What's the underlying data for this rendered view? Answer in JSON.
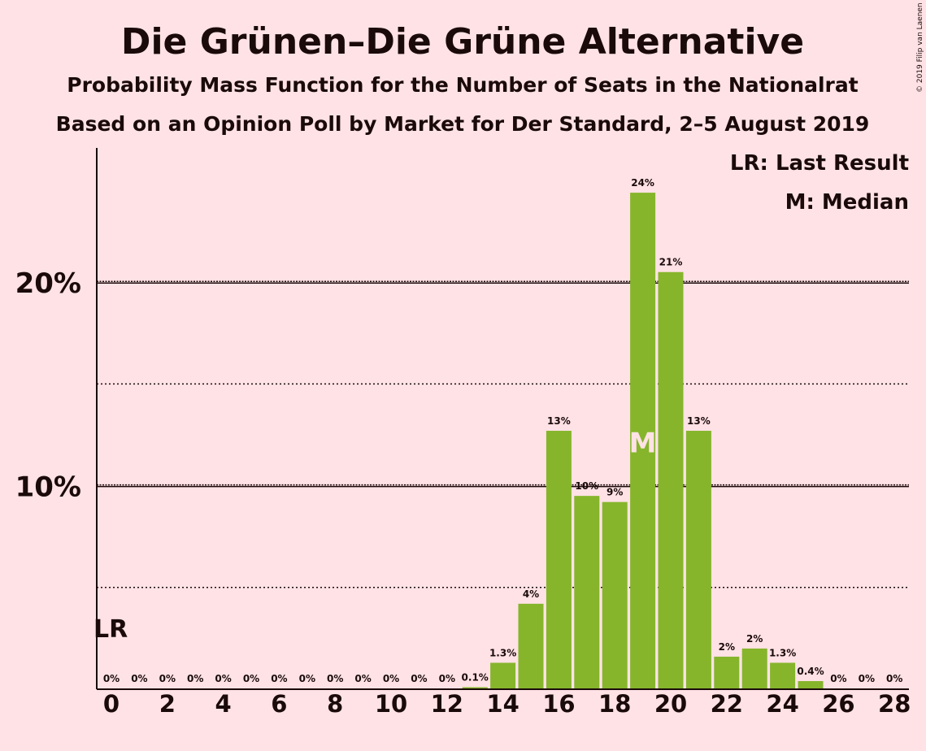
{
  "title": "Die Grünen–Die Grüne Alternative",
  "subtitle1": "Probability Mass Function for the Number of Seats in the Nationalrat",
  "subtitle2": "Based on an Opinion Poll by Market for Der Standard, 2–5 August 2019",
  "copyright": "© 2019 Filip van Laenen",
  "legend": {
    "lr": "LR: Last Result",
    "m": "M: Median"
  },
  "colors": {
    "background": "#FFE2E5",
    "bar": "#86B52C",
    "text": "#1a0a0a",
    "median_marker": "#FFE2E5"
  },
  "chart_data": {
    "type": "bar",
    "x": [
      0,
      1,
      2,
      3,
      4,
      5,
      6,
      7,
      8,
      9,
      10,
      11,
      12,
      13,
      14,
      15,
      16,
      17,
      18,
      19,
      20,
      21,
      22,
      23,
      24,
      25,
      26,
      27,
      28
    ],
    "values": [
      0,
      0,
      0,
      0,
      0,
      0,
      0,
      0,
      0,
      0,
      0,
      0,
      0,
      0.1,
      1.3,
      4.2,
      12.7,
      9.5,
      9.2,
      24.4,
      20.5,
      12.7,
      1.6,
      2.0,
      1.3,
      0.4,
      0,
      0,
      0
    ],
    "data_labels": [
      "0%",
      "0%",
      "0%",
      "0%",
      "0%",
      "0%",
      "0%",
      "0%",
      "0%",
      "0%",
      "0%",
      "0%",
      "0%",
      "0.1%",
      "1.3%",
      "4%",
      "13%",
      "10%",
      "9%",
      "24%",
      "21%",
      "13%",
      "2%",
      "2%",
      "1.3%",
      "0.4%",
      "0%",
      "0%",
      "0%"
    ],
    "x_ticks": [
      "0",
      "2",
      "4",
      "6",
      "8",
      "10",
      "12",
      "14",
      "16",
      "18",
      "20",
      "22",
      "24",
      "26",
      "28"
    ],
    "y_ticks": [
      {
        "value": 10,
        "label": "10%"
      },
      {
        "value": 20,
        "label": "20%"
      }
    ],
    "y_minor_dotted": [
      5,
      15
    ],
    "ylim": [
      0,
      26.6
    ],
    "last_result": {
      "x": 0,
      "label": "LR"
    },
    "median": {
      "x": 19,
      "label": "M"
    },
    "legend_position": "top-right"
  }
}
